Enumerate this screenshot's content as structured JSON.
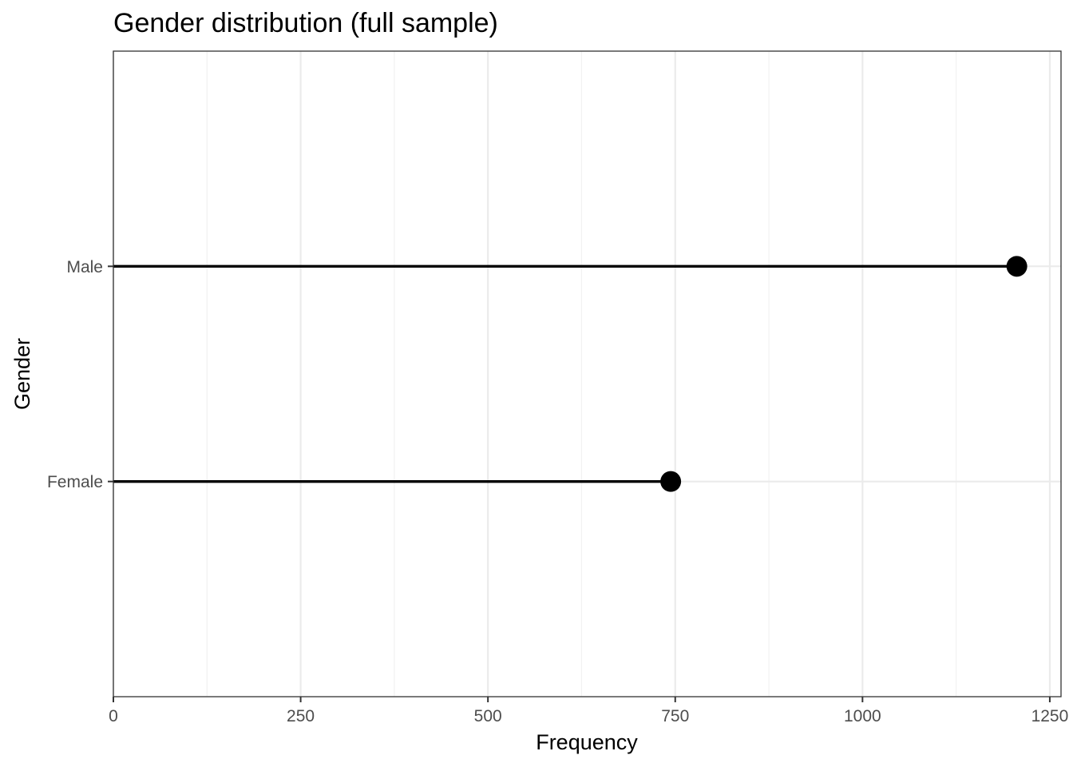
{
  "chart_data": {
    "type": "lollipop",
    "title": "Gender distribution (full sample)",
    "xlabel": "Frequency",
    "ylabel": "Gender",
    "categories": [
      "Female",
      "Male"
    ],
    "values": [
      744,
      1206
    ],
    "xlim": [
      0,
      1265
    ],
    "x_ticks": [
      0,
      250,
      500,
      750,
      1000,
      1250
    ],
    "x_tick_labels": [
      "0",
      "250",
      "500",
      "750",
      "1000",
      "1250"
    ],
    "grid": true,
    "legend": "none",
    "point_color": "#000000",
    "stem_color": "#000000"
  }
}
